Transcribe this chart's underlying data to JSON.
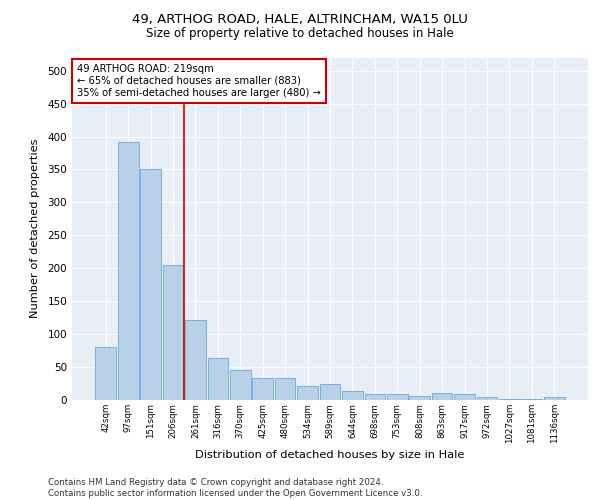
{
  "title1": "49, ARTHOG ROAD, HALE, ALTRINCHAM, WA15 0LU",
  "title2": "Size of property relative to detached houses in Hale",
  "xlabel": "Distribution of detached houses by size in Hale",
  "ylabel": "Number of detached properties",
  "categories": [
    "42sqm",
    "97sqm",
    "151sqm",
    "206sqm",
    "261sqm",
    "316sqm",
    "370sqm",
    "425sqm",
    "480sqm",
    "534sqm",
    "589sqm",
    "644sqm",
    "698sqm",
    "753sqm",
    "808sqm",
    "863sqm",
    "917sqm",
    "972sqm",
    "1027sqm",
    "1081sqm",
    "1136sqm"
  ],
  "values": [
    80,
    392,
    350,
    205,
    122,
    64,
    45,
    33,
    33,
    22,
    24,
    14,
    9,
    9,
    6,
    10,
    9,
    4,
    2,
    2,
    4
  ],
  "bar_color": "#b8d0e8",
  "bar_edge_color": "#6aaad4",
  "vline_color": "#cc0000",
  "annotation_line1": "49 ARTHOG ROAD: 219sqm",
  "annotation_line2": "← 65% of detached houses are smaller (883)",
  "annotation_line3": "35% of semi-detached houses are larger (480) →",
  "annotation_box_color": "#ffffff",
  "annotation_box_edge": "#cc0000",
  "ylim": [
    0,
    520
  ],
  "yticks": [
    0,
    50,
    100,
    150,
    200,
    250,
    300,
    350,
    400,
    450,
    500
  ],
  "footer": "Contains HM Land Registry data © Crown copyright and database right 2024.\nContains public sector information licensed under the Open Government Licence v3.0.",
  "plot_bg_color": "#e8eef6",
  "fig_bg_color": "#ffffff",
  "grid_color": "#ffffff",
  "vline_bar_index": 3.5
}
